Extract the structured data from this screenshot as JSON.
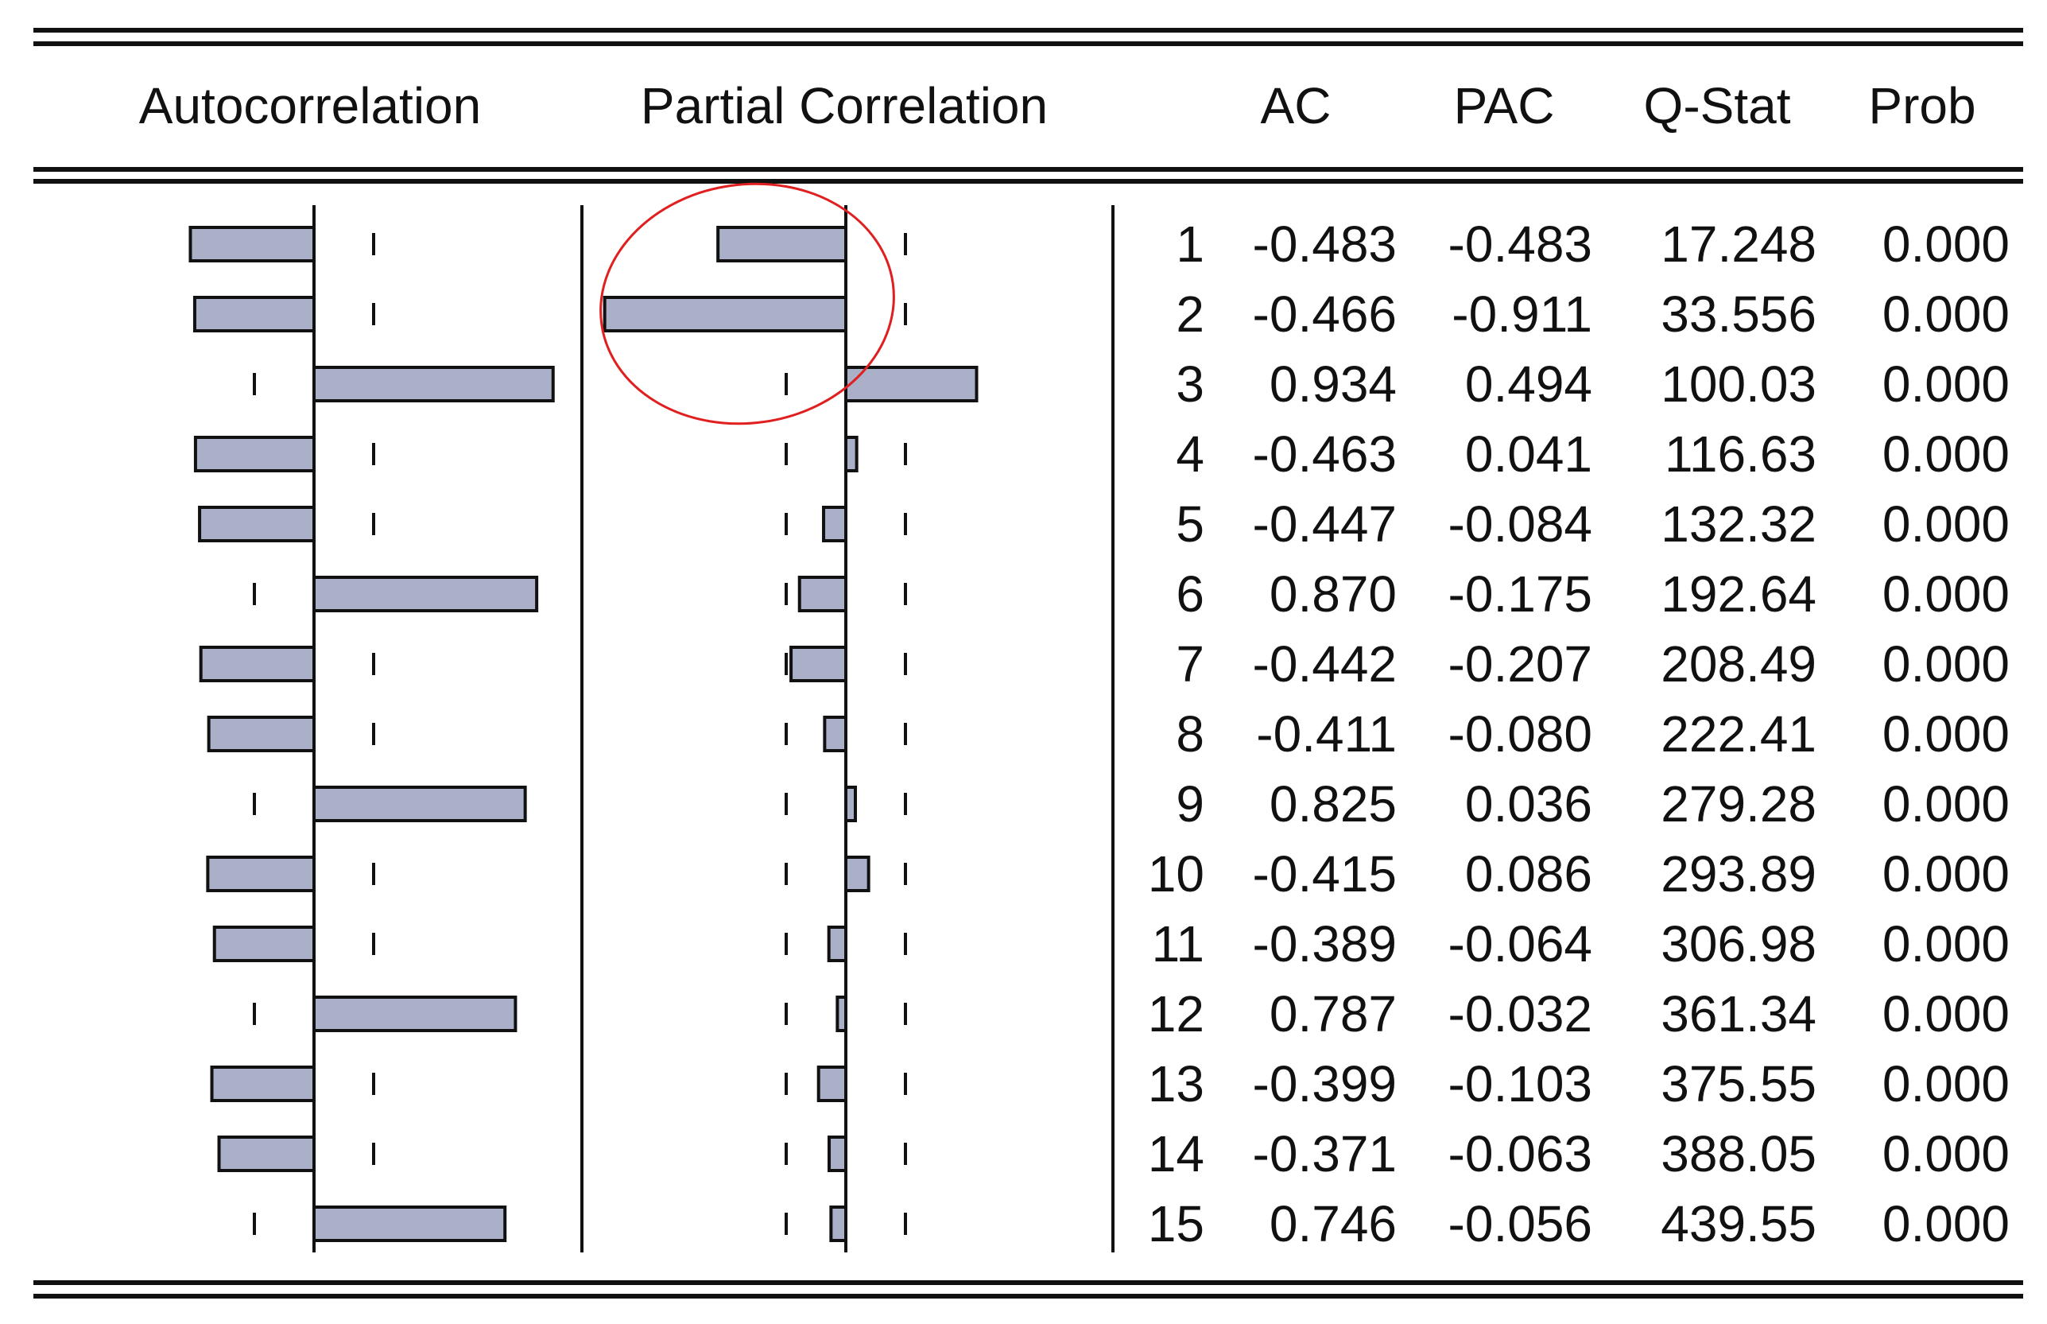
{
  "chart_data": {
    "type": "table",
    "columns": [
      "Autocorrelation",
      "Partial Correlation",
      "",
      "AC",
      "PAC",
      "Q-Stat",
      "Prob"
    ],
    "rows": [
      {
        "lag": "1",
        "ac": -0.483,
        "pac": -0.483,
        "ac_text": "-0.483",
        "pac_text": "-0.483",
        "qstat": "17.248",
        "prob": "0.000"
      },
      {
        "lag": "2",
        "ac": -0.466,
        "pac": -0.911,
        "ac_text": "-0.466",
        "pac_text": "-0.911",
        "qstat": "33.556",
        "prob": "0.000"
      },
      {
        "lag": "3",
        "ac": 0.934,
        "pac": 0.494,
        "ac_text": "0.934",
        "pac_text": "0.494",
        "qstat": "100.03",
        "prob": "0.000"
      },
      {
        "lag": "4",
        "ac": -0.463,
        "pac": 0.041,
        "ac_text": "-0.463",
        "pac_text": "0.041",
        "qstat": "116.63",
        "prob": "0.000"
      },
      {
        "lag": "5",
        "ac": -0.447,
        "pac": -0.084,
        "ac_text": "-0.447",
        "pac_text": "-0.084",
        "qstat": "132.32",
        "prob": "0.000"
      },
      {
        "lag": "6",
        "ac": 0.87,
        "pac": -0.175,
        "ac_text": "0.870",
        "pac_text": "-0.175",
        "qstat": "192.64",
        "prob": "0.000"
      },
      {
        "lag": "7",
        "ac": -0.442,
        "pac": -0.207,
        "ac_text": "-0.442",
        "pac_text": "-0.207",
        "qstat": "208.49",
        "prob": "0.000"
      },
      {
        "lag": "8",
        "ac": -0.411,
        "pac": -0.08,
        "ac_text": "-0.411",
        "pac_text": "-0.080",
        "qstat": "222.41",
        "prob": "0.000"
      },
      {
        "lag": "9",
        "ac": 0.825,
        "pac": 0.036,
        "ac_text": "0.825",
        "pac_text": "0.036",
        "qstat": "279.28",
        "prob": "0.000"
      },
      {
        "lag": "10",
        "ac": -0.415,
        "pac": 0.086,
        "ac_text": "-0.415",
        "pac_text": "0.086",
        "qstat": "293.89",
        "prob": "0.000"
      },
      {
        "lag": "11",
        "ac": -0.389,
        "pac": -0.064,
        "ac_text": "-0.389",
        "pac_text": "-0.064",
        "qstat": "306.98",
        "prob": "0.000"
      },
      {
        "lag": "12",
        "ac": 0.787,
        "pac": -0.032,
        "ac_text": "0.787",
        "pac_text": "-0.032",
        "qstat": "361.34",
        "prob": "0.000"
      },
      {
        "lag": "13",
        "ac": -0.399,
        "pac": -0.103,
        "ac_text": "-0.399",
        "pac_text": "-0.103",
        "qstat": "375.55",
        "prob": "0.000"
      },
      {
        "lag": "14",
        "ac": -0.371,
        "pac": -0.063,
        "ac_text": "-0.371",
        "pac_text": "-0.063",
        "qstat": "388.05",
        "prob": "0.000"
      },
      {
        "lag": "15",
        "ac": 0.746,
        "pac": -0.056,
        "ac_text": "0.746",
        "pac_text": "-0.056",
        "qstat": "439.55",
        "prob": "0.000"
      }
    ],
    "confidence_band": 0.25,
    "colors": {
      "bar_fill": "#a9b0c8",
      "line": "#111111",
      "highlight_ellipse": "#e02020"
    },
    "annotations": [
      {
        "type": "ellipse",
        "description": "red circle highlighting partial correlation bars at lags 1-2"
      }
    ]
  }
}
